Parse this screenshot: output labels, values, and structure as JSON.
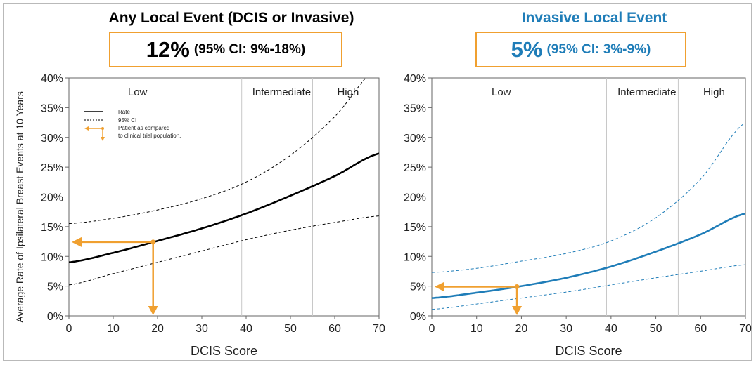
{
  "panels": [
    {
      "title": "Any Local Event (DCIS or Invasive)",
      "estimate": "12%",
      "ci_text": "(95% CI: 9%-18%)",
      "accent_color": "#000000",
      "curve_color": "#000000"
    },
    {
      "title": "Invasive Local Event",
      "estimate": "5%",
      "ci_text": "(95% CI: 3%-9%)",
      "accent_color": "#1f7db8",
      "curve_color": "#1f7db8"
    }
  ],
  "shared": {
    "ylabel": "Average Rate of Ipsilateral Breast Events at 10 Years",
    "xlabel": "DCIS Score",
    "regions": [
      "Low",
      "Intermediate",
      "High"
    ],
    "x_ticks": [
      "0",
      "10",
      "20",
      "30",
      "40",
      "50",
      "60",
      "70"
    ],
    "y_ticks": [
      "0%",
      "5%",
      "10%",
      "15%",
      "20%",
      "25%",
      "30%",
      "35%",
      "40%"
    ],
    "arrow_color": "#f0a030"
  },
  "legend": {
    "rate": "Rate",
    "ci": "95% CI",
    "patient_line1": "Patient as compared",
    "patient_line2": "to clinical trial population."
  },
  "chart_data": [
    {
      "type": "line",
      "title": "Any Local Event (DCIS or Invasive)",
      "xlabel": "DCIS Score",
      "ylabel": "Average Rate of Ipsilateral Breast Events at 10 Years",
      "xlim": [
        0,
        70
      ],
      "ylim": [
        0,
        40
      ],
      "region_boundaries": [
        39,
        55
      ],
      "x": [
        0,
        10,
        20,
        30,
        40,
        50,
        60,
        70
      ],
      "series": [
        {
          "name": "Rate",
          "values": [
            9.0,
            10.6,
            12.6,
            14.7,
            17.2,
            20.2,
            23.5,
            27.3
          ]
        },
        {
          "name": "95% CI",
          "values": [
            15.5,
            16.4,
            17.8,
            19.7,
            22.5,
            27.0,
            33.5,
            42.0
          ]
        },
        {
          "name": "95% CI",
          "values": [
            5.2,
            7.1,
            9.0,
            10.9,
            12.8,
            14.4,
            15.7,
            16.8
          ]
        }
      ],
      "patient": {
        "score": 19,
        "rate": 12.4
      }
    },
    {
      "type": "line",
      "title": "Invasive Local Event",
      "xlabel": "DCIS Score",
      "xlim": [
        0,
        70
      ],
      "ylim": [
        0,
        40
      ],
      "region_boundaries": [
        39,
        55
      ],
      "x": [
        0,
        10,
        20,
        30,
        40,
        50,
        60,
        70
      ],
      "series": [
        {
          "name": "Rate",
          "values": [
            3.0,
            3.9,
            5.0,
            6.4,
            8.3,
            10.8,
            13.7,
            17.2
          ]
        },
        {
          "name": "95% CI",
          "values": [
            7.3,
            8.0,
            9.2,
            10.5,
            12.6,
            16.5,
            23.0,
            32.5
          ]
        },
        {
          "name": "95% CI",
          "values": [
            1.1,
            2.0,
            3.0,
            4.0,
            5.2,
            6.4,
            7.5,
            8.6
          ]
        }
      ],
      "patient": {
        "score": 19,
        "rate": 4.9
      }
    }
  ]
}
